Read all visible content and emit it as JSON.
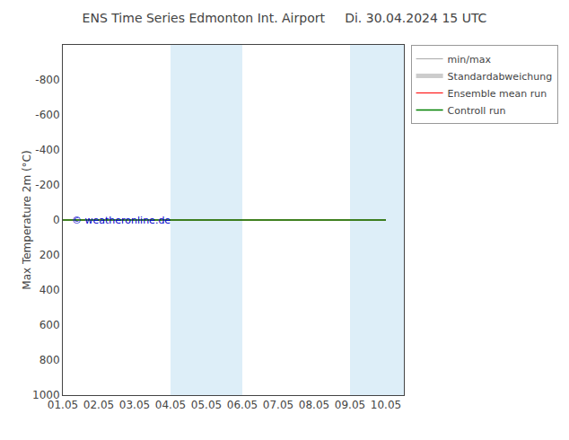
{
  "chart_data": {
    "type": "line",
    "title": "ENS Time Series Edmonton Int. Airport     Di. 30.04.2024 15 UTC",
    "ylabel": "Max Temperature 2m (°C)",
    "categories": [
      "01.05",
      "02.05",
      "03.05",
      "04.05",
      "05.05",
      "06.05",
      "07.05",
      "08.05",
      "09.05",
      "10.05"
    ],
    "series": [
      {
        "name": "min/max",
        "color": "#aaaaaa",
        "values": [
          null,
          null,
          null,
          null,
          null,
          null,
          null,
          null,
          null,
          null
        ]
      },
      {
        "name": "Standardabweichung",
        "color": "#cccccc",
        "values": [
          null,
          null,
          null,
          null,
          null,
          null,
          null,
          null,
          null,
          null
        ]
      },
      {
        "name": "Ensemble mean run",
        "color": "#ff0000",
        "values": [
          0,
          0,
          0,
          0,
          0,
          0,
          0,
          0,
          0,
          0
        ]
      },
      {
        "name": "Controll run",
        "color": "#008000",
        "values": [
          0,
          0,
          0,
          0,
          0,
          0,
          0,
          0,
          0,
          0
        ]
      }
    ],
    "ylim": [
      1000,
      -1000
    ],
    "yticks": [
      -800,
      -600,
      -400,
      -200,
      0,
      200,
      400,
      600,
      800,
      1000
    ],
    "grid": false,
    "legend": "upper right",
    "shaded_bands": [
      {
        "start": 3.0,
        "end": 5.0,
        "color": "#ddeef8"
      },
      {
        "start": 8.0,
        "end": 9.5,
        "color": "#ddeef8"
      }
    ],
    "annotations": [
      {
        "text": "© weatheronline.de",
        "color": "#0000cc"
      }
    ]
  }
}
